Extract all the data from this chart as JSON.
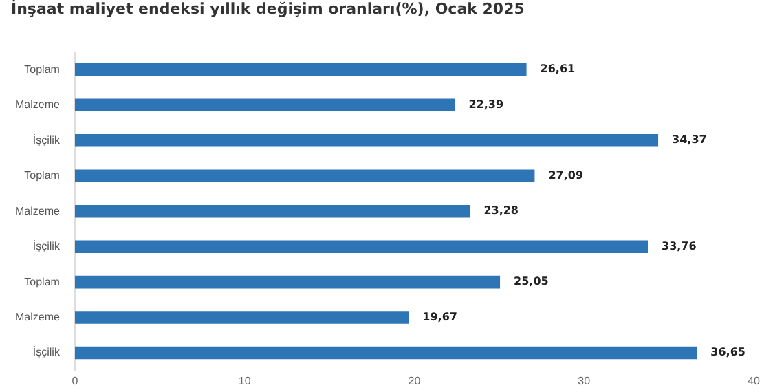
{
  "chart_data": {
    "type": "bar",
    "orientation": "horizontal",
    "title": "İnşaat maliyet endeksi yıllık değişim oranları(%), Ocak 2025",
    "categories": [
      "Toplam",
      "Malzeme",
      "İşçilik",
      "Toplam",
      "Malzeme",
      "İşçilik",
      "Toplam",
      "Malzeme",
      "İşçilik"
    ],
    "values": [
      26.61,
      22.39,
      34.37,
      27.09,
      23.28,
      33.76,
      25.05,
      19.67,
      36.65
    ],
    "value_labels": [
      "26,61",
      "22,39",
      "34,37",
      "27,09",
      "23,28",
      "33,76",
      "25,05",
      "19,67",
      "36,65"
    ],
    "color": "#2e75b6",
    "xlim": [
      0,
      40
    ],
    "xticks": [
      0,
      10,
      20,
      30,
      40
    ],
    "grid": false
  }
}
